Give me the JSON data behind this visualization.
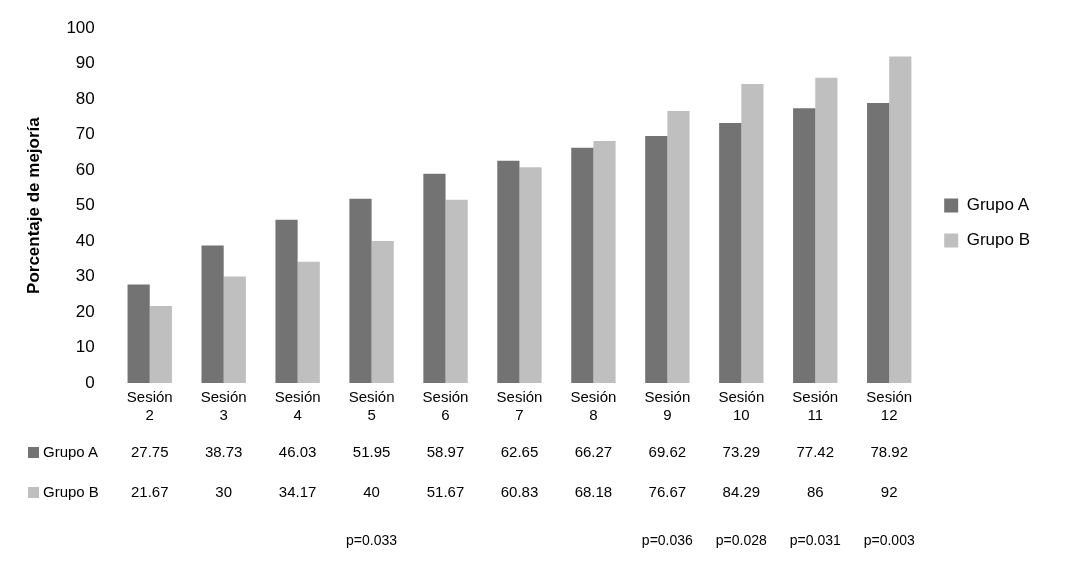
{
  "chart_data": {
    "type": "bar",
    "ylabel": "Porcentaje de mejoría",
    "categories": [
      "Sesión 2",
      "Sesión 3",
      "Sesión 4",
      "Sesión 5",
      "Sesión 6",
      "Sesión 7",
      "Sesión 8",
      "Sesión 9",
      "Sesión 10",
      "Sesión 11",
      "Sesión 12"
    ],
    "series": [
      {
        "name": "Grupo A",
        "color": "#737373",
        "values": [
          27.75,
          38.73,
          46.03,
          51.95,
          58.97,
          62.65,
          66.27,
          69.62,
          73.29,
          77.42,
          78.92
        ]
      },
      {
        "name": "Grupo B",
        "color": "#bfbfbf",
        "values": [
          21.67,
          30,
          34.17,
          40,
          51.67,
          60.83,
          68.18,
          76.67,
          84.29,
          86,
          92
        ]
      }
    ],
    "ylim": [
      0,
      100
    ],
    "yticks": [
      0,
      10,
      20,
      30,
      40,
      50,
      60,
      70,
      80,
      90,
      100
    ],
    "grid": false,
    "legend": "right",
    "data_labels": true,
    "annotations": [
      "p=0.033",
      "p=0.036",
      "p=0.028",
      "p=0.031",
      "p=0.003"
    ]
  }
}
